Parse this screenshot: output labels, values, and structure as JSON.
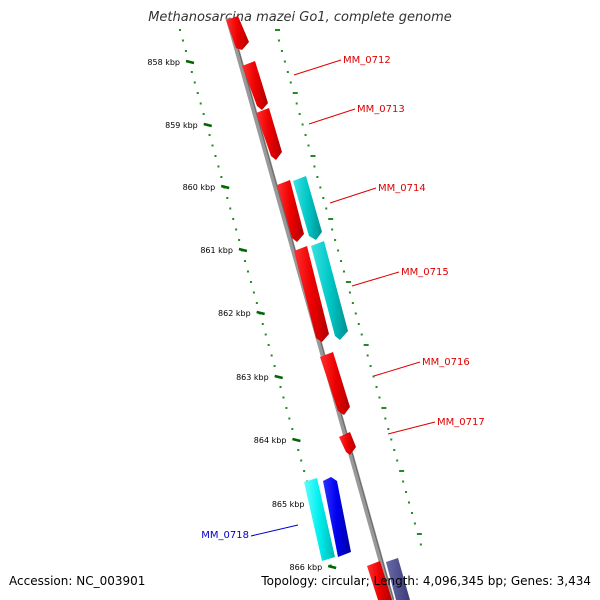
{
  "title": "Methanosarcina mazei Go1, complete genome",
  "footer": {
    "accession": "Accession: NC_003901",
    "summary": "Topology: circular; Length: 4,096,345 bp; Genes: 3,434"
  },
  "ticks": [
    "858 kbp",
    "859 kbp",
    "860 kbp",
    "861 kbp",
    "862 kbp",
    "863 kbp",
    "864 kbp",
    "865 kbp",
    "866 kbp"
  ],
  "genes": [
    {
      "label": "MM_0712",
      "color": "#dd0000"
    },
    {
      "label": "MM_0713",
      "color": "#dd0000"
    },
    {
      "label": "MM_0714",
      "color": "#dd0000"
    },
    {
      "label": "MM_0715",
      "color": "#dd0000"
    },
    {
      "label": "MM_0716",
      "color": "#dd0000"
    },
    {
      "label": "MM_0717",
      "color": "#dd0000"
    },
    {
      "label": "MM_0718",
      "color": "#0000cc"
    }
  ],
  "colors": {
    "forward_cds": "#ff0000",
    "forward_rna": "#00cccc",
    "reverse_cds": "#0000ee",
    "reverse_rna": "#00e5e5",
    "backbone": "#888888",
    "tick": "#006600",
    "ruler_dots": "#228B22"
  }
}
